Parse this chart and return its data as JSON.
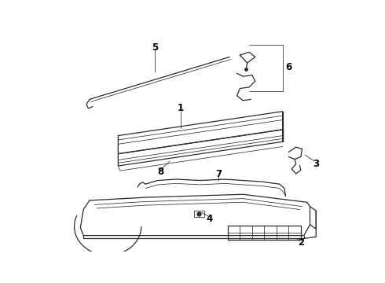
{
  "bg_color": "#ffffff",
  "line_color": "#2a2a2a",
  "label_color": "#000000",
  "lw_main": 0.9,
  "lw_thin": 0.55,
  "label_fs": 8.5
}
